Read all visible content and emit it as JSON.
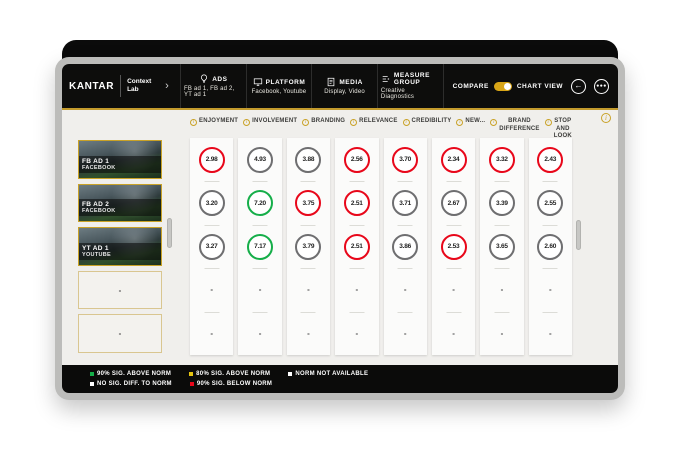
{
  "header": {
    "brand": "KANTAR",
    "product": "Context Lab",
    "sections": [
      {
        "icon": "bulb-icon",
        "title": "ADS",
        "subtitle": "FB ad 1, FB ad 2, YT ad 1"
      },
      {
        "icon": "platform-icon",
        "title": "PLATFORM",
        "subtitle": "Facebook, Youtube"
      },
      {
        "icon": "media-icon",
        "title": "MEDIA",
        "subtitle": "Display, Video"
      },
      {
        "icon": "measure-icon",
        "title": "MEASURE GROUP",
        "subtitle": "Creative Diagnostics"
      }
    ],
    "compare_label": "COMPARE",
    "chart_view_label": "CHART VIEW",
    "toggle_state": "on"
  },
  "icons": {
    "chevron_right": "›",
    "back_arrow": "←",
    "more": "●●●",
    "info": "i"
  },
  "ads": [
    {
      "name": "FB AD 1",
      "platform": "FACEBOOK",
      "video": true
    },
    {
      "name": "FB AD 2",
      "platform": "FACEBOOK",
      "video": true
    },
    {
      "name": "YT AD 1",
      "platform": "YOUTUBE",
      "video": true
    },
    {
      "name": "-",
      "platform": "",
      "video": false
    },
    {
      "name": "-",
      "platform": "",
      "video": false
    }
  ],
  "metrics": [
    "ENJOYMENT",
    "INVOLVEMENT",
    "BRANDING",
    "RELEVANCE",
    "CREDIBILITY",
    "NEW...",
    "BRAND DIFFERENCE",
    "STOP AND LOOK"
  ],
  "scores": {
    "empty": "-",
    "rows": [
      {
        "ad": "FB AD 1",
        "values": [
          {
            "v": "2.98",
            "s": "below"
          },
          {
            "v": "4.93",
            "s": "neutral"
          },
          {
            "v": "3.88",
            "s": "neutral"
          },
          {
            "v": "2.56",
            "s": "below"
          },
          {
            "v": "3.70",
            "s": "below"
          },
          {
            "v": "2.34",
            "s": "below"
          },
          {
            "v": "3.32",
            "s": "below"
          },
          {
            "v": "2.43",
            "s": "below"
          }
        ]
      },
      {
        "ad": "FB AD 2",
        "values": [
          {
            "v": "3.20",
            "s": "neutral"
          },
          {
            "v": "7.20",
            "s": "above"
          },
          {
            "v": "3.75",
            "s": "below"
          },
          {
            "v": "2.51",
            "s": "below"
          },
          {
            "v": "3.71",
            "s": "neutral"
          },
          {
            "v": "2.67",
            "s": "neutral"
          },
          {
            "v": "3.39",
            "s": "neutral"
          },
          {
            "v": "2.55",
            "s": "neutral"
          }
        ]
      },
      {
        "ad": "YT AD 1",
        "values": [
          {
            "v": "3.27",
            "s": "neutral"
          },
          {
            "v": "7.17",
            "s": "above"
          },
          {
            "v": "3.79",
            "s": "neutral"
          },
          {
            "v": "2.51",
            "s": "below"
          },
          {
            "v": "3.86",
            "s": "neutral"
          },
          {
            "v": "2.53",
            "s": "below"
          },
          {
            "v": "3.65",
            "s": "neutral"
          },
          {
            "v": "2.60",
            "s": "neutral"
          }
        ]
      },
      {
        "ad": "-",
        "values": null
      },
      {
        "ad": "-",
        "values": null
      }
    ]
  },
  "colors": {
    "above": "#15ae49",
    "below": "#e8071a",
    "neutral": "#6e6e70",
    "accent_gold": "#c9a227",
    "legend_yellow": "#e6c410",
    "legend_white": "#ffffff"
  },
  "legend": {
    "row1": [
      {
        "color": "#15ae49",
        "label": "90% SIG. ABOVE NORM"
      },
      {
        "color": "#e6c410",
        "label": "80% SIG. ABOVE NORM"
      },
      {
        "color": "#ffffff",
        "label": "NORM NOT AVAILABLE"
      }
    ],
    "row2": [
      {
        "color": "#ffffff",
        "label": "NO SIG. DIFF. TO NORM"
      },
      {
        "color": "#e8071a",
        "label": "90% SIG. BELOW NORM"
      }
    ]
  }
}
